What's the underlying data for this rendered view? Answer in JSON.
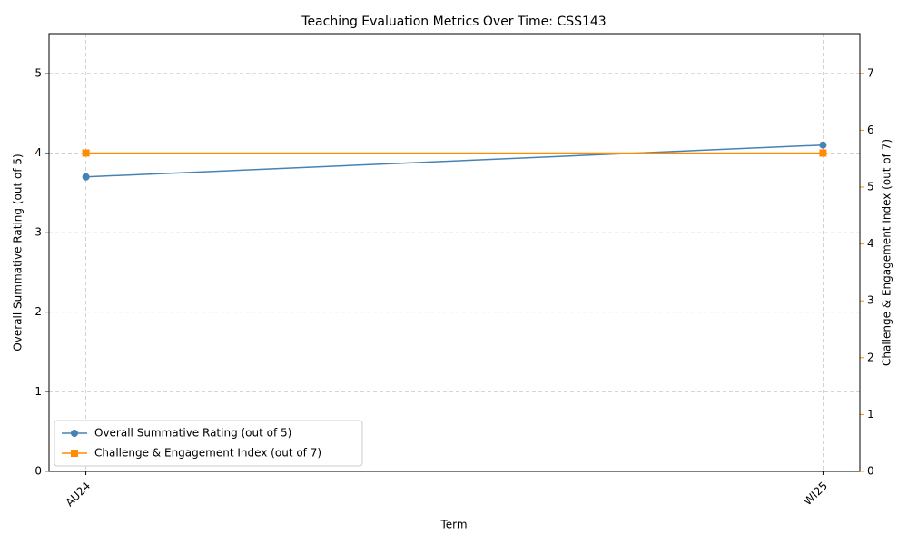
{
  "chart_data": {
    "type": "line",
    "title": "Teaching Evaluation Metrics Over Time: CSS143",
    "x_label": "Term",
    "y_label": "Overall Summative Rating (out of 5)",
    "y2_label": "Challenge & Engagement Index (out of 7)",
    "categories": [
      "AU24",
      "WI25"
    ],
    "series": [
      {
        "name": "Overall Summative Rating (out of 5)",
        "color": "#4682b4",
        "marker": "circle",
        "values": [
          3.7,
          4.1
        ]
      },
      {
        "name": "Challenge & Engagement Index (out of 7)",
        "color": "#ff8c00",
        "marker": "square",
        "axis": "y2",
        "values": [
          5.6,
          5.6
        ]
      }
    ],
    "ylim": [
      0,
      5.5
    ],
    "yticks": [
      0,
      1,
      2,
      3,
      4,
      5
    ],
    "y2lim": [
      0,
      7.7
    ],
    "y2ticks": [
      0,
      1,
      2,
      3,
      4,
      5,
      6,
      7
    ],
    "grid": true,
    "legend": "lower left"
  }
}
